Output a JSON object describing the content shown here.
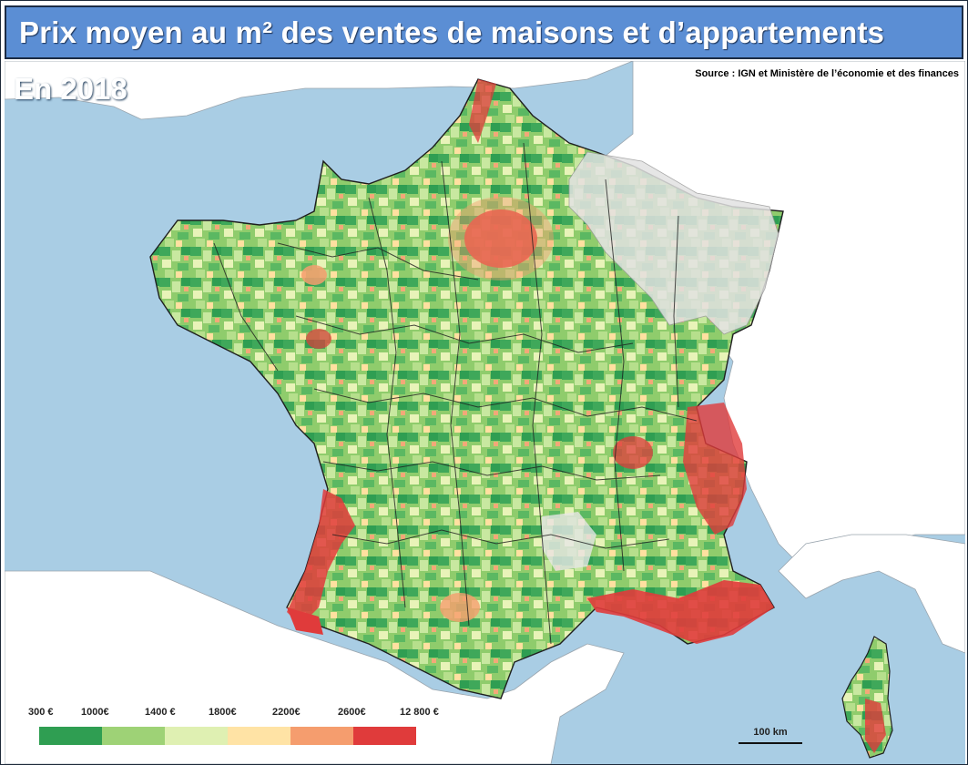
{
  "title": "Prix moyen au m² des ventes de maisons et d’appartements",
  "year_label": "En 2018",
  "source": "Source : IGN et Ministère de l’économie et des finances",
  "scale_label": "100  km",
  "legend": {
    "labels": [
      "300  €",
      "1000€",
      "1400  €",
      "1800€",
      "2200€",
      "2600€",
      "12 800  €"
    ],
    "colors": [
      "#2f9e52",
      "#9ed276",
      "#dff0b2",
      "#ffe3a5",
      "#f59d6e",
      "#e03b3b"
    ]
  },
  "colors": {
    "sea": "#a9cde4",
    "neighbour_land": "#ffffff",
    "no_data": "#e2e2e2",
    "title_bar": "#5b8ed4"
  }
}
